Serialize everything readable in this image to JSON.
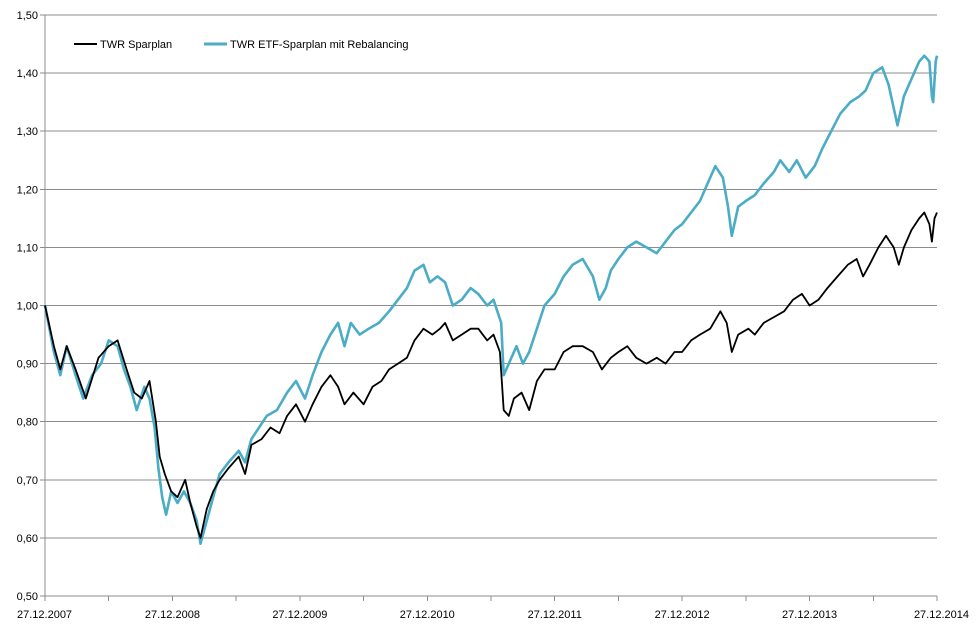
{
  "chart_data": {
    "type": "line",
    "title": "",
    "xlabel": "",
    "ylabel": "",
    "x_tick_labels": [
      "27.12.2007",
      "27.12.2008",
      "27.12.2009",
      "27.12.2010",
      "27.12.2011",
      "27.12.2012",
      "27.12.2013",
      "27.12.2014"
    ],
    "y_tick_labels": [
      "0,50",
      "0,60",
      "0,70",
      "0,80",
      "0,90",
      "1,00",
      "1,10",
      "1,20",
      "1,30",
      "1,40",
      "1,50"
    ],
    "ylim": [
      0.5,
      1.5
    ],
    "xlim": [
      2007.98,
      2014.98
    ],
    "grid": true,
    "legend_position": "top-left",
    "series": [
      {
        "name": "TWR Sparplan",
        "color": "#000000",
        "points": [
          [
            2007.98,
            1.0
          ],
          [
            2008.05,
            0.93
          ],
          [
            2008.1,
            0.89
          ],
          [
            2008.15,
            0.93
          ],
          [
            2008.22,
            0.89
          ],
          [
            2008.3,
            0.84
          ],
          [
            2008.4,
            0.91
          ],
          [
            2008.48,
            0.93
          ],
          [
            2008.55,
            0.94
          ],
          [
            2008.62,
            0.89
          ],
          [
            2008.68,
            0.85
          ],
          [
            2008.74,
            0.84
          ],
          [
            2008.8,
            0.87
          ],
          [
            2008.85,
            0.8
          ],
          [
            2008.88,
            0.74
          ],
          [
            2008.92,
            0.71
          ],
          [
            2008.97,
            0.68
          ],
          [
            2009.02,
            0.67
          ],
          [
            2009.08,
            0.7
          ],
          [
            2009.12,
            0.66
          ],
          [
            2009.17,
            0.62
          ],
          [
            2009.2,
            0.6
          ],
          [
            2009.25,
            0.65
          ],
          [
            2009.3,
            0.68
          ],
          [
            2009.35,
            0.7
          ],
          [
            2009.42,
            0.72
          ],
          [
            2009.5,
            0.74
          ],
          [
            2009.55,
            0.71
          ],
          [
            2009.6,
            0.76
          ],
          [
            2009.68,
            0.77
          ],
          [
            2009.75,
            0.79
          ],
          [
            2009.82,
            0.78
          ],
          [
            2009.88,
            0.81
          ],
          [
            2009.95,
            0.83
          ],
          [
            2010.02,
            0.8
          ],
          [
            2010.08,
            0.83
          ],
          [
            2010.15,
            0.86
          ],
          [
            2010.22,
            0.88
          ],
          [
            2010.28,
            0.86
          ],
          [
            2010.33,
            0.83
          ],
          [
            2010.4,
            0.85
          ],
          [
            2010.48,
            0.83
          ],
          [
            2010.55,
            0.86
          ],
          [
            2010.62,
            0.87
          ],
          [
            2010.68,
            0.89
          ],
          [
            2010.75,
            0.9
          ],
          [
            2010.82,
            0.91
          ],
          [
            2010.88,
            0.94
          ],
          [
            2010.95,
            0.96
          ],
          [
            2011.02,
            0.95
          ],
          [
            2011.08,
            0.96
          ],
          [
            2011.12,
            0.97
          ],
          [
            2011.18,
            0.94
          ],
          [
            2011.25,
            0.95
          ],
          [
            2011.32,
            0.96
          ],
          [
            2011.38,
            0.96
          ],
          [
            2011.45,
            0.94
          ],
          [
            2011.5,
            0.95
          ],
          [
            2011.55,
            0.92
          ],
          [
            2011.58,
            0.82
          ],
          [
            2011.62,
            0.81
          ],
          [
            2011.66,
            0.84
          ],
          [
            2011.72,
            0.85
          ],
          [
            2011.78,
            0.82
          ],
          [
            2011.84,
            0.87
          ],
          [
            2011.9,
            0.89
          ],
          [
            2011.98,
            0.89
          ],
          [
            2012.05,
            0.92
          ],
          [
            2012.12,
            0.93
          ],
          [
            2012.2,
            0.93
          ],
          [
            2012.28,
            0.92
          ],
          [
            2012.35,
            0.89
          ],
          [
            2012.42,
            0.91
          ],
          [
            2012.48,
            0.92
          ],
          [
            2012.55,
            0.93
          ],
          [
            2012.62,
            0.91
          ],
          [
            2012.7,
            0.9
          ],
          [
            2012.78,
            0.91
          ],
          [
            2012.85,
            0.9
          ],
          [
            2012.92,
            0.92
          ],
          [
            2012.98,
            0.92
          ],
          [
            2013.05,
            0.94
          ],
          [
            2013.12,
            0.95
          ],
          [
            2013.2,
            0.96
          ],
          [
            2013.28,
            0.99
          ],
          [
            2013.33,
            0.97
          ],
          [
            2013.37,
            0.92
          ],
          [
            2013.42,
            0.95
          ],
          [
            2013.5,
            0.96
          ],
          [
            2013.55,
            0.95
          ],
          [
            2013.62,
            0.97
          ],
          [
            2013.7,
            0.98
          ],
          [
            2013.78,
            0.99
          ],
          [
            2013.85,
            1.01
          ],
          [
            2013.92,
            1.02
          ],
          [
            2013.98,
            1.0
          ],
          [
            2014.05,
            1.01
          ],
          [
            2014.12,
            1.03
          ],
          [
            2014.2,
            1.05
          ],
          [
            2014.28,
            1.07
          ],
          [
            2014.35,
            1.08
          ],
          [
            2014.4,
            1.05
          ],
          [
            2014.45,
            1.07
          ],
          [
            2014.52,
            1.1
          ],
          [
            2014.58,
            1.12
          ],
          [
            2014.64,
            1.1
          ],
          [
            2014.68,
            1.07
          ],
          [
            2014.72,
            1.1
          ],
          [
            2014.78,
            1.13
          ],
          [
            2014.84,
            1.15
          ],
          [
            2014.88,
            1.16
          ],
          [
            2014.92,
            1.14
          ],
          [
            2014.94,
            1.11
          ],
          [
            2014.96,
            1.15
          ],
          [
            2014.98,
            1.16
          ]
        ]
      },
      {
        "name": "TWR ETF-Sparplan mit Rebalancing",
        "color": "#4bacc6",
        "points": [
          [
            2007.98,
            1.0
          ],
          [
            2008.05,
            0.92
          ],
          [
            2008.1,
            0.88
          ],
          [
            2008.15,
            0.93
          ],
          [
            2008.22,
            0.88
          ],
          [
            2008.28,
            0.84
          ],
          [
            2008.35,
            0.88
          ],
          [
            2008.42,
            0.9
          ],
          [
            2008.48,
            0.94
          ],
          [
            2008.55,
            0.93
          ],
          [
            2008.6,
            0.89
          ],
          [
            2008.65,
            0.86
          ],
          [
            2008.7,
            0.82
          ],
          [
            2008.76,
            0.86
          ],
          [
            2008.8,
            0.84
          ],
          [
            2008.84,
            0.79
          ],
          [
            2008.87,
            0.72
          ],
          [
            2008.9,
            0.67
          ],
          [
            2008.93,
            0.64
          ],
          [
            2008.97,
            0.68
          ],
          [
            2009.02,
            0.66
          ],
          [
            2009.07,
            0.68
          ],
          [
            2009.12,
            0.66
          ],
          [
            2009.17,
            0.63
          ],
          [
            2009.2,
            0.59
          ],
          [
            2009.25,
            0.63
          ],
          [
            2009.3,
            0.67
          ],
          [
            2009.35,
            0.71
          ],
          [
            2009.42,
            0.73
          ],
          [
            2009.5,
            0.75
          ],
          [
            2009.55,
            0.73
          ],
          [
            2009.6,
            0.77
          ],
          [
            2009.66,
            0.79
          ],
          [
            2009.72,
            0.81
          ],
          [
            2009.8,
            0.82
          ],
          [
            2009.88,
            0.85
          ],
          [
            2009.95,
            0.87
          ],
          [
            2010.02,
            0.84
          ],
          [
            2010.08,
            0.88
          ],
          [
            2010.15,
            0.92
          ],
          [
            2010.22,
            0.95
          ],
          [
            2010.28,
            0.97
          ],
          [
            2010.33,
            0.93
          ],
          [
            2010.38,
            0.97
          ],
          [
            2010.45,
            0.95
          ],
          [
            2010.52,
            0.96
          ],
          [
            2010.6,
            0.97
          ],
          [
            2010.68,
            0.99
          ],
          [
            2010.75,
            1.01
          ],
          [
            2010.82,
            1.03
          ],
          [
            2010.88,
            1.06
          ],
          [
            2010.95,
            1.07
          ],
          [
            2011.0,
            1.04
          ],
          [
            2011.06,
            1.05
          ],
          [
            2011.12,
            1.04
          ],
          [
            2011.18,
            1.0
          ],
          [
            2011.25,
            1.01
          ],
          [
            2011.32,
            1.03
          ],
          [
            2011.38,
            1.02
          ],
          [
            2011.45,
            1.0
          ],
          [
            2011.5,
            1.01
          ],
          [
            2011.56,
            0.97
          ],
          [
            2011.58,
            0.88
          ],
          [
            2011.62,
            0.9
          ],
          [
            2011.68,
            0.93
          ],
          [
            2011.73,
            0.9
          ],
          [
            2011.78,
            0.92
          ],
          [
            2011.84,
            0.96
          ],
          [
            2011.9,
            1.0
          ],
          [
            2011.98,
            1.02
          ],
          [
            2012.05,
            1.05
          ],
          [
            2012.12,
            1.07
          ],
          [
            2012.2,
            1.08
          ],
          [
            2012.28,
            1.05
          ],
          [
            2012.33,
            1.01
          ],
          [
            2012.38,
            1.03
          ],
          [
            2012.42,
            1.06
          ],
          [
            2012.48,
            1.08
          ],
          [
            2012.55,
            1.1
          ],
          [
            2012.62,
            1.11
          ],
          [
            2012.7,
            1.1
          ],
          [
            2012.78,
            1.09
          ],
          [
            2012.85,
            1.11
          ],
          [
            2012.92,
            1.13
          ],
          [
            2012.98,
            1.14
          ],
          [
            2013.05,
            1.16
          ],
          [
            2013.12,
            1.18
          ],
          [
            2013.18,
            1.21
          ],
          [
            2013.24,
            1.24
          ],
          [
            2013.3,
            1.22
          ],
          [
            2013.34,
            1.17
          ],
          [
            2013.37,
            1.12
          ],
          [
            2013.42,
            1.17
          ],
          [
            2013.48,
            1.18
          ],
          [
            2013.55,
            1.19
          ],
          [
            2013.62,
            1.21
          ],
          [
            2013.7,
            1.23
          ],
          [
            2013.75,
            1.25
          ],
          [
            2013.82,
            1.23
          ],
          [
            2013.88,
            1.25
          ],
          [
            2013.95,
            1.22
          ],
          [
            2014.02,
            1.24
          ],
          [
            2014.08,
            1.27
          ],
          [
            2014.15,
            1.3
          ],
          [
            2014.22,
            1.33
          ],
          [
            2014.3,
            1.35
          ],
          [
            2014.37,
            1.36
          ],
          [
            2014.42,
            1.37
          ],
          [
            2014.48,
            1.4
          ],
          [
            2014.55,
            1.41
          ],
          [
            2014.6,
            1.38
          ],
          [
            2014.64,
            1.34
          ],
          [
            2014.67,
            1.31
          ],
          [
            2014.72,
            1.36
          ],
          [
            2014.78,
            1.39
          ],
          [
            2014.84,
            1.42
          ],
          [
            2014.88,
            1.43
          ],
          [
            2014.92,
            1.42
          ],
          [
            2014.94,
            1.36
          ],
          [
            2014.95,
            1.35
          ],
          [
            2014.97,
            1.42
          ],
          [
            2014.98,
            1.43
          ]
        ]
      }
    ]
  }
}
